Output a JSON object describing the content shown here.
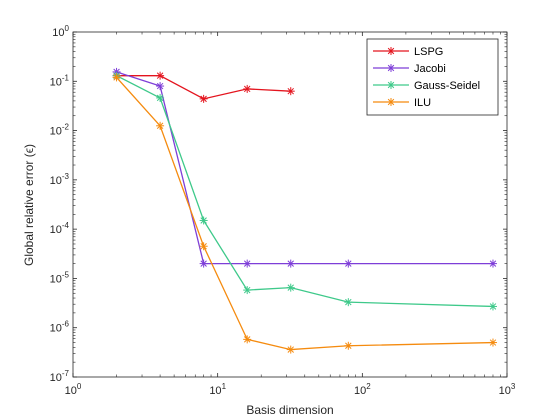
{
  "chart_data": {
    "type": "line",
    "title": "",
    "xlabel": "Basis dimension",
    "ylabel": "Global relative error (ϵ)",
    "xscale": "log",
    "yscale": "log",
    "xlim": [
      1,
      1000
    ],
    "ylim": [
      1e-07,
      1
    ],
    "x_ticks": [
      {
        "value": 1,
        "base": "10",
        "exp": "0"
      },
      {
        "value": 10,
        "base": "10",
        "exp": "1"
      },
      {
        "value": 100,
        "base": "10",
        "exp": "2"
      },
      {
        "value": 1000,
        "base": "10",
        "exp": "3"
      }
    ],
    "y_ticks": [
      {
        "value": 1e-07,
        "base": "10",
        "exp": "-7"
      },
      {
        "value": 1e-06,
        "base": "10",
        "exp": "-6"
      },
      {
        "value": 1e-05,
        "base": "10",
        "exp": "-5"
      },
      {
        "value": 0.0001,
        "base": "10",
        "exp": "-4"
      },
      {
        "value": 0.001,
        "base": "10",
        "exp": "-3"
      },
      {
        "value": 0.01,
        "base": "10",
        "exp": "-2"
      },
      {
        "value": 0.1,
        "base": "10",
        "exp": "-1"
      },
      {
        "value": 1,
        "base": "10",
        "exp": "0"
      }
    ],
    "grid": false,
    "marker": "asterisk",
    "legend_position": "top-right",
    "series": [
      {
        "name": "LSPG",
        "color": "#e4141e",
        "x": [
          2,
          4,
          8,
          16,
          32
        ],
        "y": [
          0.13,
          0.13,
          0.044,
          0.07,
          0.063
        ]
      },
      {
        "name": "Jacobi",
        "color": "#7e3ed8",
        "x": [
          2,
          4,
          8,
          16,
          32,
          80,
          800
        ],
        "y": [
          0.155,
          0.08,
          2e-05,
          2e-05,
          2e-05,
          2e-05,
          2e-05
        ]
      },
      {
        "name": "Gauss-Seidel",
        "color": "#3ec98a",
        "x": [
          2,
          4,
          8,
          16,
          32,
          80,
          800
        ],
        "y": [
          0.13,
          0.046,
          0.00015,
          5.8e-06,
          6.5e-06,
          3.3e-06,
          2.7e-06
        ]
      },
      {
        "name": "ILU",
        "color": "#f58b0f",
        "x": [
          2,
          4,
          8,
          16,
          32,
          80,
          800
        ],
        "y": [
          0.12,
          0.0125,
          4.5e-05,
          5.8e-07,
          3.6e-07,
          4.3e-07,
          5e-07
        ]
      }
    ]
  }
}
